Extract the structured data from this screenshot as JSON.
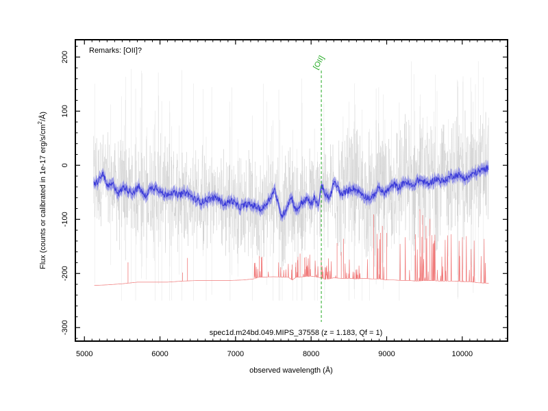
{
  "chart_data": {
    "type": "line",
    "xlabel": "observed wavelength (Å)",
    "ylabel_main": "Flux (counts or calibrated in 1e-17 erg/s/cm",
    "ylabel_sup": "2",
    "ylabel_tail": "/Å)",
    "xlim": [
      4880,
      10600
    ],
    "ylim": [
      -325,
      232
    ],
    "xticks": [
      {
        "value": 5000,
        "label": "5000"
      },
      {
        "value": 6000,
        "label": "6000"
      },
      {
        "value": 7000,
        "label": "7000"
      },
      {
        "value": 8000,
        "label": "8000"
      },
      {
        "value": 9000,
        "label": "9000"
      },
      {
        "value": 10000,
        "label": "10000"
      }
    ],
    "yticks": [
      {
        "value": 200,
        "label": "200"
      },
      {
        "value": 100,
        "label": "100"
      },
      {
        "value": 0,
        "label": "0"
      },
      {
        "value": -100,
        "label": "-100"
      },
      {
        "value": -200,
        "label": "-200"
      },
      {
        "value": -300,
        "label": "-300"
      }
    ],
    "remarks": "Remarks: [OII]?",
    "caption": "spec1d.m24bd.049.MIPS_37558 (z = 1.183, Qf = 1)",
    "line_marker": {
      "label": "[OII]",
      "x": 8135
    },
    "colors": {
      "raw": "#cccccc",
      "smoothed": "#3a3ad8",
      "band": "#8585e6",
      "sky": "#f07878",
      "marker": "#22aa22"
    },
    "series": [
      {
        "role": "smoothed_flux",
        "x": [
          5120,
          5180,
          5250,
          5300,
          5380,
          5450,
          5520,
          5600,
          5650,
          5720,
          5800,
          5880,
          5950,
          6050,
          6150,
          6250,
          6350,
          6450,
          6550,
          6650,
          6750,
          6850,
          6950,
          7050,
          7150,
          7250,
          7350,
          7450,
          7520,
          7580,
          7620,
          7700,
          7740,
          7800,
          7870,
          7950,
          8000,
          8050,
          8100,
          8135,
          8180,
          8250,
          8300,
          8350,
          8400,
          8450,
          8550,
          8650,
          8720,
          8800,
          8900,
          8950,
          9000,
          9100,
          9150,
          9250,
          9350,
          9400,
          9450,
          9550,
          9650,
          9750,
          9850,
          9950,
          10050,
          10150,
          10250,
          10350
        ],
        "y": [
          -35,
          -30,
          -15,
          -40,
          -35,
          -52,
          -40,
          -48,
          -50,
          -40,
          -58,
          -42,
          -40,
          -55,
          -50,
          -55,
          -50,
          -62,
          -68,
          -62,
          -60,
          -72,
          -65,
          -78,
          -72,
          -75,
          -82,
          -62,
          -45,
          -82,
          -95,
          -70,
          -58,
          -85,
          -70,
          -62,
          -72,
          -60,
          -75,
          -35,
          -55,
          -60,
          -32,
          -40,
          -55,
          -50,
          -42,
          -50,
          -58,
          -62,
          -40,
          -52,
          -48,
          -35,
          -42,
          -30,
          -40,
          -28,
          -28,
          -35,
          -25,
          -30,
          -20,
          -18,
          -25,
          -15,
          -10,
          -5
        ]
      },
      {
        "role": "sky_spectrum",
        "x": [
          5130,
          5300,
          5500,
          5700,
          5900,
          6100,
          6300,
          6500,
          6700,
          6900,
          7100,
          7240,
          7300,
          7500,
          7700,
          7750,
          7800,
          8000,
          8100,
          8200,
          8300,
          8400,
          8500,
          8600,
          8700,
          8800,
          8900,
          9000,
          9100,
          9200,
          9300,
          9400,
          9500,
          9600,
          9700,
          9800,
          9900,
          10000,
          10100,
          10200,
          10350
        ],
        "y": [
          -222,
          -221,
          -219,
          -216,
          -216,
          -216,
          -214,
          -213,
          -213,
          -213,
          -212,
          -210,
          -207,
          -206,
          -207,
          -212,
          -207,
          -205,
          -207,
          -211,
          -208,
          -209,
          -209,
          -210,
          -209,
          -210,
          -210,
          -212,
          -212,
          -213,
          -213,
          -214,
          -213,
          -213,
          -214,
          -214,
          -214,
          -215,
          -215,
          -217,
          -218
        ]
      }
    ]
  }
}
